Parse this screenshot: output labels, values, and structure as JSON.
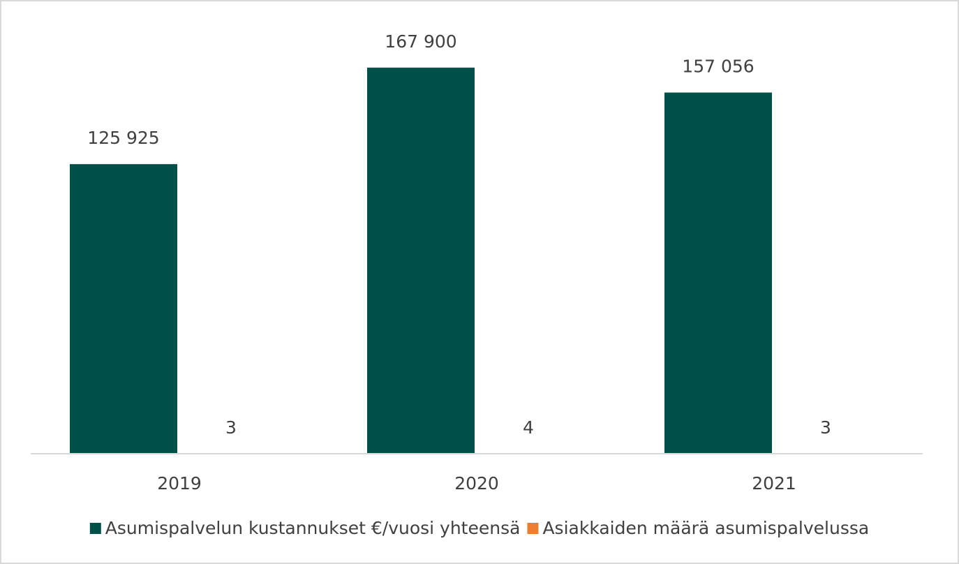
{
  "chart_data": {
    "type": "bar",
    "categories": [
      "2019",
      "2020",
      "2021"
    ],
    "series": [
      {
        "name": "Asumispalvelun kustannukset €/vuosi yhteensä",
        "color": "#00504a",
        "values": [
          125925,
          167900,
          157056
        ],
        "value_labels": [
          "125 925",
          "167 900",
          "157 056"
        ]
      },
      {
        "name": "Asiakkaiden määrä asumispalvelussa",
        "color": "#ed7d31",
        "values": [
          3,
          4,
          3
        ]
      }
    ],
    "ylim": [
      0,
      180000
    ],
    "legend": "bottom"
  }
}
